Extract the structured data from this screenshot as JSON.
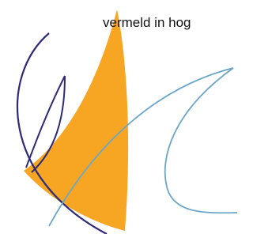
{
  "text": "vermeld in hog"
}
